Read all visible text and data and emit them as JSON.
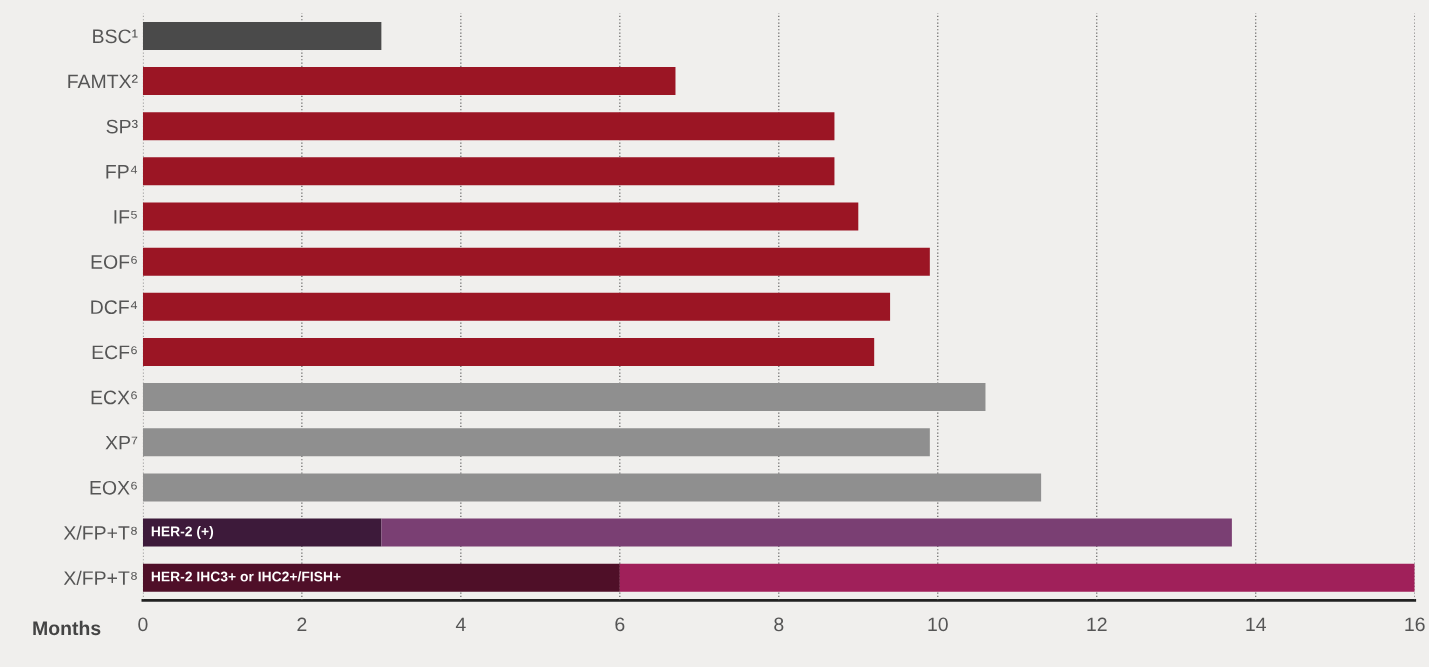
{
  "chart_data": {
    "type": "bar",
    "orientation": "horizontal",
    "stacked": true,
    "categories": [
      "BSC¹",
      "FAMTX²",
      "SP³",
      "FP⁴",
      "IF⁵",
      "EOF⁶",
      "DCF⁴",
      "ECF⁶",
      "ECX⁶",
      "XP⁷",
      "EOX⁶",
      "X/FP+T⁸",
      "X/FP+T⁸"
    ],
    "series": [
      {
        "values": [
          3.0,
          6.7,
          8.7,
          8.7,
          9.0,
          9.9,
          9.4,
          9.2,
          10.6,
          9.9,
          11.3,
          3.0,
          6.0
        ],
        "colors": [
          "#4a4a4a",
          "#9b1524",
          "#9b1524",
          "#9b1524",
          "#9b1524",
          "#9b1524",
          "#9b1524",
          "#9b1524",
          "#8f8f8f",
          "#8f8f8f",
          "#8f8f8f",
          "#3d1a3a",
          "#4f0f28"
        ]
      },
      {
        "values": [
          null,
          null,
          null,
          null,
          null,
          null,
          null,
          null,
          null,
          null,
          null,
          10.7,
          10.0
        ],
        "colors": [
          "#7a3f73",
          "#7a3f73",
          "#7a3f73",
          "#7a3f73",
          "#7a3f73",
          "#7a3f73",
          "#7a3f73",
          "#7a3f73",
          "#7a3f73",
          "#7a3f73",
          "#7a3f73",
          "#7a3f73",
          "#a0205a"
        ]
      }
    ],
    "xlabel": "Months",
    "xlim": [
      0,
      16
    ],
    "xticks": [
      0,
      2,
      4,
      6,
      8,
      10,
      12,
      14,
      16
    ],
    "grid": "x",
    "annotations": [
      "HER-2 (+)",
      "HER-2 IHC3+ or IHC2+/FISH+"
    ]
  }
}
